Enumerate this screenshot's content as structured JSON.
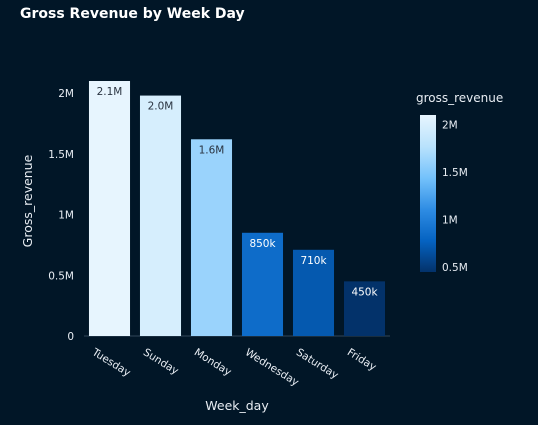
{
  "chart_data": {
    "type": "bar",
    "title": "Gross Revenue by Week Day",
    "xlabel": "Week_day",
    "ylabel": "Gross_revenue",
    "categories": [
      "Tuesday",
      "Sunday",
      "Monday",
      "Wednesday",
      "Saturday",
      "Friday"
    ],
    "values": [
      2100000,
      1980000,
      1620000,
      850000,
      710000,
      450000
    ],
    "data_labels": [
      "2.1M",
      "2.0M",
      "1.6M",
      "850k",
      "710k",
      "450k"
    ],
    "ylim": [
      0,
      2100000
    ],
    "yticks": [
      0,
      500000,
      1000000,
      1500000,
      2000000
    ],
    "ytick_labels": [
      "0",
      "0.5M",
      "1M",
      "1.5M",
      "2M"
    ],
    "grid": false,
    "colorbar": {
      "title": "gross_revenue",
      "range": [
        450000,
        2100000
      ],
      "ticks": [
        500000,
        1000000,
        1500000,
        2000000
      ],
      "tick_labels": [
        "0.5M",
        "1M",
        "1.5M",
        "2M"
      ],
      "placement": "right"
    },
    "colorscale": [
      "#03326a",
      "#0563c2",
      "#2f8de4",
      "#74c2fb",
      "#b9e2fc",
      "#e7f5fe"
    ],
    "background": "#011627"
  }
}
